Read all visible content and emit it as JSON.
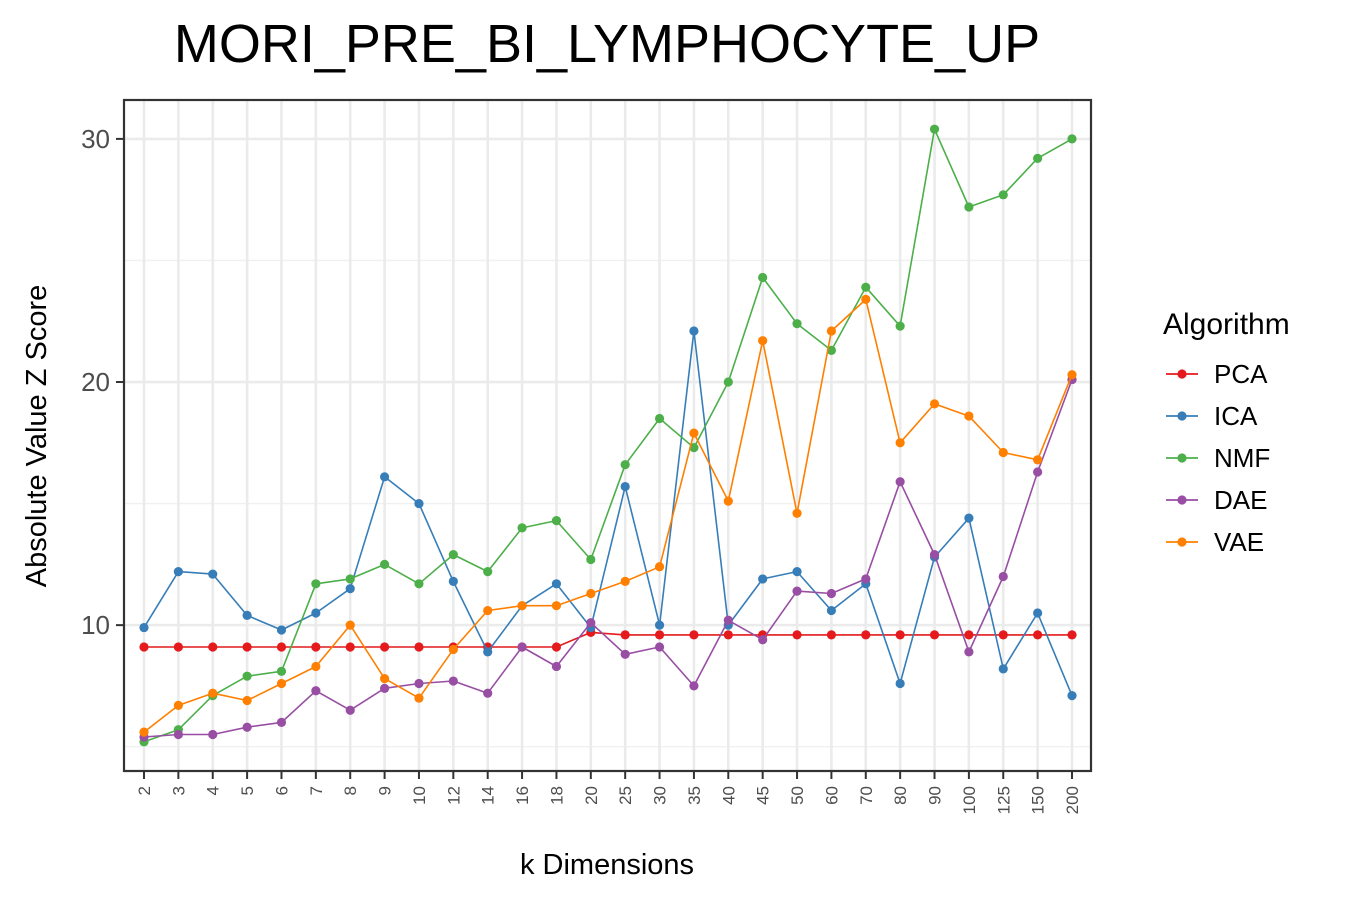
{
  "chart_data": {
    "type": "line",
    "title": "MORI_PRE_BI_LYMPHOCYTE_UP",
    "xlabel": "k Dimensions",
    "ylabel": "Absolute Value Z Score",
    "categories": [
      "2",
      "3",
      "4",
      "5",
      "6",
      "7",
      "8",
      "9",
      "10",
      "12",
      "14",
      "16",
      "18",
      "20",
      "25",
      "30",
      "35",
      "40",
      "45",
      "50",
      "60",
      "70",
      "80",
      "90",
      "100",
      "125",
      "150",
      "200"
    ],
    "ylim": [
      4.0,
      31.6
    ],
    "yticks": [
      10,
      20,
      30
    ],
    "grid": true,
    "legend": {
      "title": "Algorithm",
      "position": "right"
    },
    "series": [
      {
        "name": "PCA",
        "color": "#e41a1c",
        "values": [
          9.1,
          9.1,
          9.1,
          9.1,
          9.1,
          9.1,
          9.1,
          9.1,
          9.1,
          9.1,
          9.1,
          9.1,
          9.1,
          9.7,
          9.6,
          9.6,
          9.6,
          9.6,
          9.6,
          9.6,
          9.6,
          9.6,
          9.6,
          9.6,
          9.6,
          9.6,
          9.6,
          9.6
        ]
      },
      {
        "name": "ICA",
        "color": "#377eb8",
        "values": [
          9.9,
          12.2,
          12.1,
          10.4,
          9.8,
          10.5,
          11.5,
          16.1,
          15.0,
          11.8,
          8.9,
          10.8,
          11.7,
          9.9,
          15.7,
          10.0,
          22.1,
          10.0,
          11.9,
          12.2,
          10.6,
          11.7,
          7.6,
          12.8,
          14.4,
          8.2,
          10.5,
          7.1
        ]
      },
      {
        "name": "NMF",
        "color": "#4daf4a",
        "values": [
          5.2,
          5.7,
          7.1,
          7.9,
          8.1,
          11.7,
          11.9,
          12.5,
          11.7,
          12.9,
          12.2,
          14.0,
          14.3,
          12.7,
          16.6,
          18.5,
          17.3,
          20.0,
          24.3,
          22.4,
          21.3,
          23.9,
          22.3,
          30.4,
          27.2,
          27.7,
          29.2,
          30.0
        ]
      },
      {
        "name": "DAE",
        "color": "#984ea3",
        "values": [
          5.4,
          5.5,
          5.5,
          5.8,
          6.0,
          7.3,
          6.5,
          7.4,
          7.6,
          7.7,
          7.2,
          9.1,
          8.3,
          10.1,
          8.8,
          9.1,
          7.5,
          10.2,
          9.4,
          11.4,
          11.3,
          11.9,
          15.9,
          12.9,
          8.9,
          12.0,
          16.3,
          20.1
        ]
      },
      {
        "name": "VAE",
        "color": "#ff7f00",
        "values": [
          5.6,
          6.7,
          7.2,
          6.9,
          7.6,
          8.3,
          10.0,
          7.8,
          7.0,
          9.0,
          10.6,
          10.8,
          10.8,
          11.3,
          11.8,
          12.4,
          17.9,
          15.1,
          21.7,
          14.6,
          22.1,
          23.4,
          17.5,
          19.1,
          18.6,
          17.1,
          16.8,
          20.3
        ]
      }
    ]
  }
}
